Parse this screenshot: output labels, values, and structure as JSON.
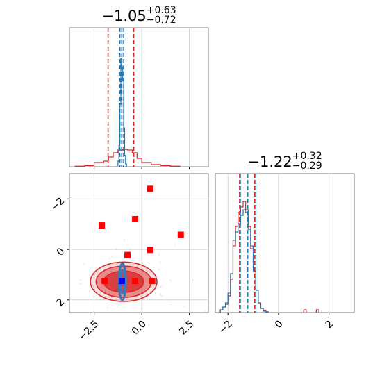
{
  "chart_data": [
    {
      "panel": "x1-marginal",
      "type": "histogram",
      "title": {
        "main": "−1.05",
        "sup": "+0.63",
        "sub": "−0.72"
      },
      "xlim": [
        -3.8,
        3.5
      ],
      "ylim": [
        0,
        1
      ],
      "grid": true,
      "series": [
        {
          "color": "#1f77b4",
          "bins": [
            -1.3,
            -1.25,
            -1.2,
            -1.15,
            -1.1,
            -1.05,
            -1.0,
            -0.95,
            -0.9,
            -0.85,
            -0.8
          ],
          "heights": [
            0.01,
            0.04,
            0.15,
            0.45,
            0.78,
            0.72,
            0.62,
            0.28,
            0.08,
            0.02
          ],
          "quantile_lines": [
            -1.15,
            -1.05,
            -0.95
          ]
        },
        {
          "color": "#d62728",
          "bins": [
            -3.5,
            -3.0,
            -2.5,
            -2.0,
            -1.75,
            -1.5,
            -1.25,
            -1.0,
            -0.75,
            -0.5,
            -0.25,
            0.0,
            0.5,
            1.0,
            1.5,
            2.0
          ],
          "heights": [
            0.004,
            0.008,
            0.03,
            0.04,
            0.07,
            0.1,
            0.12,
            0.125,
            0.12,
            0.1,
            0.06,
            0.03,
            0.015,
            0.008,
            0.004
          ],
          "quantile_lines": [
            -1.77,
            -1.05,
            -0.42
          ]
        }
      ]
    },
    {
      "panel": "x2-marginal",
      "type": "histogram",
      "title": {
        "main": "−1.22",
        "sup": "+0.32",
        "sub": "−0.29"
      },
      "xlim": [
        -2.5,
        3.0
      ],
      "ylim": [
        0,
        1
      ],
      "grid": true,
      "xticks": [
        -2,
        0,
        2
      ],
      "series": [
        {
          "color": "#1f77b4",
          "bins": [
            -2.3,
            -2.2,
            -2.1,
            -2.0,
            -1.9,
            -1.8,
            -1.7,
            -1.6,
            -1.5,
            -1.4,
            -1.3,
            -1.2,
            -1.1,
            -1.0,
            -0.9,
            -0.8,
            -0.7,
            -0.6,
            -0.5,
            -0.4
          ],
          "heights": [
            0.02,
            0.04,
            0.07,
            0.14,
            0.28,
            0.52,
            0.58,
            0.64,
            0.7,
            0.74,
            0.72,
            0.6,
            0.48,
            0.3,
            0.16,
            0.07,
            0.03,
            0.01,
            0.005
          ],
          "quantile_lines": [
            -1.51,
            -1.22,
            -0.9
          ]
        },
        {
          "color": "#d62728",
          "bins": [
            -2.3,
            -2.2,
            -2.1,
            -2.0,
            -1.9,
            -1.8,
            -1.7,
            -1.6,
            -1.5,
            -1.4,
            -1.3,
            -1.2,
            -1.1,
            -1.0,
            -0.9,
            -0.8,
            -0.7,
            -0.6,
            -0.5,
            -0.4
          ],
          "heights": [
            0.02,
            0.04,
            0.06,
            0.12,
            0.24,
            0.48,
            0.62,
            0.72,
            0.76,
            0.8,
            0.74,
            0.62,
            0.46,
            0.3,
            0.16,
            0.07,
            0.03,
            0.015,
            0.005
          ],
          "extra_bins": [
            {
              "x0": 1.0,
              "x1": 1.1,
              "h": 0.02
            },
            {
              "x0": 1.5,
              "x1": 1.6,
              "h": 0.02
            }
          ],
          "quantile_lines": [
            -1.54,
            -1.22,
            -0.95
          ]
        }
      ]
    },
    {
      "panel": "joint",
      "type": "scatter",
      "xlim": [
        -3.8,
        3.5
      ],
      "ylim": [
        -2.5,
        3.0
      ],
      "xticks": [
        -2.5,
        0.0,
        2.5
      ],
      "yticks": [
        -2,
        0,
        2
      ],
      "grid": true,
      "red_contours": [
        {
          "cx": -0.95,
          "cy": -1.28,
          "rx": 1.75,
          "ry": 0.78,
          "alpha": 0.15
        },
        {
          "cx": -0.95,
          "cy": -1.28,
          "rx": 1.45,
          "ry": 0.62,
          "alpha": 0.45
        },
        {
          "cx": -0.95,
          "cy": -1.28,
          "rx": 1.05,
          "ry": 0.42,
          "alpha": 0.75
        }
      ],
      "blue_contours": [
        {
          "cx": -1.02,
          "cy": -1.28,
          "rx": 0.18,
          "ry": 0.72
        },
        {
          "cx": -1.02,
          "cy": -1.28,
          "rx": 0.11,
          "ry": 0.45
        }
      ],
      "red_points": [
        {
          "x": 0.45,
          "y": 2.4
        },
        {
          "x": -2.1,
          "y": 0.95
        },
        {
          "x": -0.35,
          "y": 1.2
        },
        {
          "x": 2.05,
          "y": 0.58
        },
        {
          "x": 0.45,
          "y": -0.02
        },
        {
          "x": -0.75,
          "y": -0.22
        },
        {
          "x": -1.95,
          "y": -1.25
        },
        {
          "x": -1.05,
          "y": -1.25
        },
        {
          "x": -0.35,
          "y": -1.25
        },
        {
          "x": 0.55,
          "y": -1.25
        }
      ],
      "blue_points": [
        {
          "x": -1.05,
          "y": -1.25
        }
      ]
    }
  ],
  "axes": {
    "marginal1": {
      "xticklabels": []
    },
    "joint": {
      "xticklabels": [
        "−2.5",
        "0.0",
        "2.5"
      ],
      "yticklabels": [
        "2",
        "0",
        "−2"
      ]
    },
    "marginal2": {
      "xticklabels": [
        "−2",
        "0",
        "2"
      ]
    }
  },
  "colors": {
    "blue": "#1f77b4",
    "red": "#d62728",
    "grid": "#c8c8c8",
    "frame": "#808080"
  }
}
